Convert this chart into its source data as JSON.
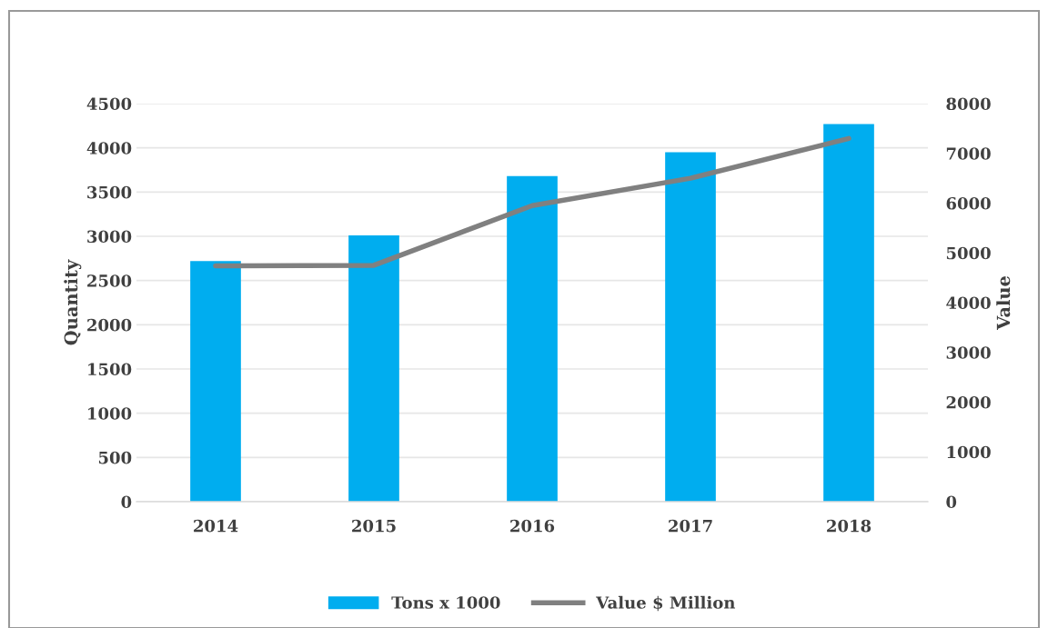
{
  "chart_data": {
    "type": "bar",
    "categories": [
      "2014",
      "2015",
      "2016",
      "2017",
      "2018"
    ],
    "series": [
      {
        "name": "Tons x 1000",
        "color": "#00adef",
        "values": [
          2720,
          3010,
          3680,
          3950,
          4270
        ]
      },
      {
        "name": "Value $ Million",
        "type": "line",
        "axis": "y2",
        "color": "#808080",
        "values": [
          4740,
          4750,
          5950,
          6500,
          7300
        ]
      }
    ],
    "ylabel": "Quantity",
    "y2label": "Value",
    "ylim": [
      0,
      4500
    ],
    "yticks": [
      0,
      500,
      1000,
      1500,
      2000,
      2500,
      3000,
      3500,
      4000,
      4500
    ],
    "y2lim": [
      0,
      8000
    ],
    "y2ticks": [
      0,
      1000,
      2000,
      3000,
      4000,
      5000,
      6000,
      7000,
      8000
    ],
    "grid": "y",
    "legend": "bottom",
    "marker": "none",
    "line_style": "solid"
  }
}
